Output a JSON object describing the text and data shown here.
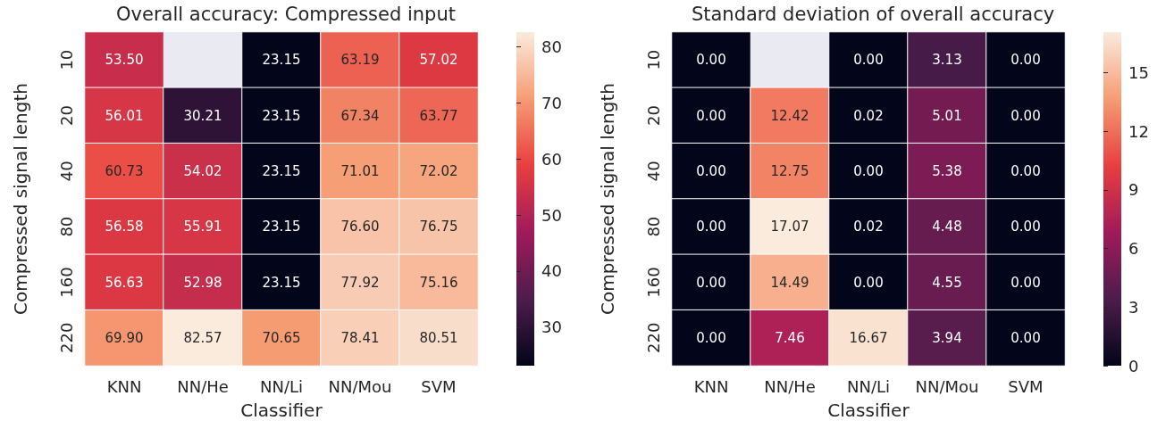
{
  "chart_data": [
    {
      "type": "heatmap",
      "title": "Overall accuracy: Compressed input",
      "xlabel": "Classifier",
      "ylabel": "Compressed signal length",
      "categories": [
        "KNN",
        "NN/He",
        "NN/Li",
        "NN/Mou",
        "SVM"
      ],
      "y_categories": [
        "10",
        "20",
        "40",
        "80",
        "160",
        "220"
      ],
      "cells": [
        [
          53.5,
          null,
          23.15,
          63.19,
          57.02
        ],
        [
          56.01,
          30.21,
          23.15,
          67.34,
          63.77
        ],
        [
          60.73,
          54.02,
          23.15,
          71.01,
          72.02
        ],
        [
          56.58,
          55.91,
          23.15,
          76.6,
          76.75
        ],
        [
          56.63,
          52.98,
          23.15,
          77.92,
          75.16
        ],
        [
          69.9,
          82.57,
          70.65,
          78.41,
          80.51
        ]
      ],
      "cell_labels": [
        [
          "53.50",
          null,
          "23.15",
          "63.19",
          "57.02"
        ],
        [
          "56.01",
          "30.21",
          "23.15",
          "67.34",
          "63.77"
        ],
        [
          "60.73",
          "54.02",
          "23.15",
          "71.01",
          "72.02"
        ],
        [
          "56.58",
          "55.91",
          "23.15",
          "76.60",
          "76.75"
        ],
        [
          "56.63",
          "52.98",
          "23.15",
          "77.92",
          "75.16"
        ],
        [
          "69.90",
          "82.57",
          "70.65",
          "78.41",
          "80.51"
        ]
      ],
      "clim": [
        23.15,
        82.57
      ],
      "cticks": [
        30,
        40,
        50,
        60,
        70,
        80
      ]
    },
    {
      "type": "heatmap",
      "title": "Standard deviation of overall accuracy",
      "xlabel": "Classifier",
      "ylabel": "Compressed signal length",
      "categories": [
        "KNN",
        "NN/He",
        "NN/Li",
        "NN/Mou",
        "SVM"
      ],
      "y_categories": [
        "10",
        "20",
        "40",
        "80",
        "160",
        "220"
      ],
      "cells": [
        [
          0,
          null,
          0,
          3.13,
          0
        ],
        [
          0,
          12.42,
          0.02,
          5.01,
          0
        ],
        [
          0,
          12.75,
          0,
          5.38,
          0
        ],
        [
          0,
          17.07,
          0.02,
          4.48,
          0
        ],
        [
          0,
          14.49,
          0,
          4.55,
          0
        ],
        [
          0,
          7.46,
          16.67,
          3.94,
          0
        ]
      ],
      "cell_labels": [
        [
          "0.00",
          null,
          "0.00",
          "3.13",
          "0.00"
        ],
        [
          "0.00",
          "12.42",
          "0.02",
          "5.01",
          "0.00"
        ],
        [
          "0.00",
          "12.75",
          "0.00",
          "5.38",
          "0.00"
        ],
        [
          "0.00",
          "17.07",
          "0.02",
          "4.48",
          "0.00"
        ],
        [
          "0.00",
          "14.49",
          "0.00",
          "4.55",
          "0.00"
        ],
        [
          "0.00",
          "7.46",
          "16.67",
          "3.94",
          "0.00"
        ]
      ],
      "clim": [
        0,
        17.07
      ],
      "cticks": [
        0,
        3,
        6,
        9,
        12,
        15
      ]
    }
  ]
}
